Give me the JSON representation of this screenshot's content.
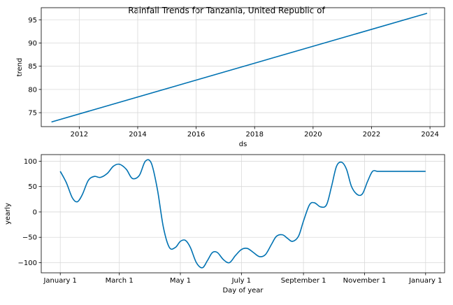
{
  "title": "Rainfall Trends for Tanzania, United Republic of",
  "colors": {
    "line": "#0072b2",
    "grid": "#d9d9d9",
    "axis": "#000000"
  },
  "chart_data": [
    {
      "type": "line",
      "xlabel": "ds",
      "ylabel": "trend",
      "xlim": [
        2010.7,
        2024.5
      ],
      "ylim": [
        72.0,
        97.6
      ],
      "xticks": [
        2012,
        2014,
        2016,
        2018,
        2020,
        2022,
        2024
      ],
      "xtick_labels": [
        "2012",
        "2014",
        "2016",
        "2018",
        "2020",
        "2022",
        "2024"
      ],
      "yticks": [
        75,
        80,
        85,
        90,
        95
      ],
      "ytick_labels": [
        "75",
        "80",
        "85",
        "90",
        "95"
      ],
      "grid": true,
      "series": [
        {
          "x": [
            2011.05,
            2023.9
          ],
          "y": [
            73.0,
            96.4
          ]
        }
      ]
    },
    {
      "type": "line",
      "xlabel": "Day of year",
      "ylabel": "yearly",
      "xlim": [
        -19,
        384
      ],
      "ylim": [
        -120,
        113
      ],
      "xticks": [
        0,
        59,
        120,
        181,
        243,
        304,
        365
      ],
      "xtick_labels": [
        "January 1",
        "March 1",
        "May 1",
        "July 1",
        "September 1",
        "November 1",
        "January 1"
      ],
      "yticks": [
        -100,
        -50,
        0,
        50,
        100
      ],
      "ytick_labels": [
        "−100",
        "−50",
        "0",
        "50",
        "100"
      ],
      "grid": true,
      "series": [
        {
          "x": [
            0,
            6,
            12,
            17,
            22,
            28,
            34,
            40,
            47,
            53,
            59,
            66,
            72,
            79,
            85,
            91,
            97,
            103,
            109,
            115,
            120,
            125,
            130,
            136,
            142,
            147,
            152,
            157,
            163,
            169,
            175,
            181,
            187,
            193,
            199,
            205,
            211,
            216,
            222,
            227,
            232,
            238,
            243,
            249,
            254,
            260,
            266,
            271,
            276,
            281,
            286,
            291,
            297,
            302,
            307,
            312,
            317,
            323,
            329,
            335,
            341,
            347,
            353,
            359,
            365
          ],
          "y": [
            80,
            58,
            28,
            20,
            34,
            62,
            70,
            68,
            76,
            90,
            94,
            84,
            66,
            72,
            100,
            96,
            45,
            -30,
            -70,
            -70,
            -58,
            -56,
            -70,
            -100,
            -110,
            -96,
            -80,
            -80,
            -94,
            -100,
            -86,
            -74,
            -72,
            -80,
            -88,
            -84,
            -64,
            -48,
            -45,
            -52,
            -58,
            -48,
            -18,
            14,
            18,
            10,
            14,
            50,
            90,
            98,
            84,
            50,
            34,
            36,
            60,
            80,
            80,
            80,
            80,
            80,
            80,
            80,
            80,
            80,
            80
          ]
        }
      ]
    }
  ]
}
